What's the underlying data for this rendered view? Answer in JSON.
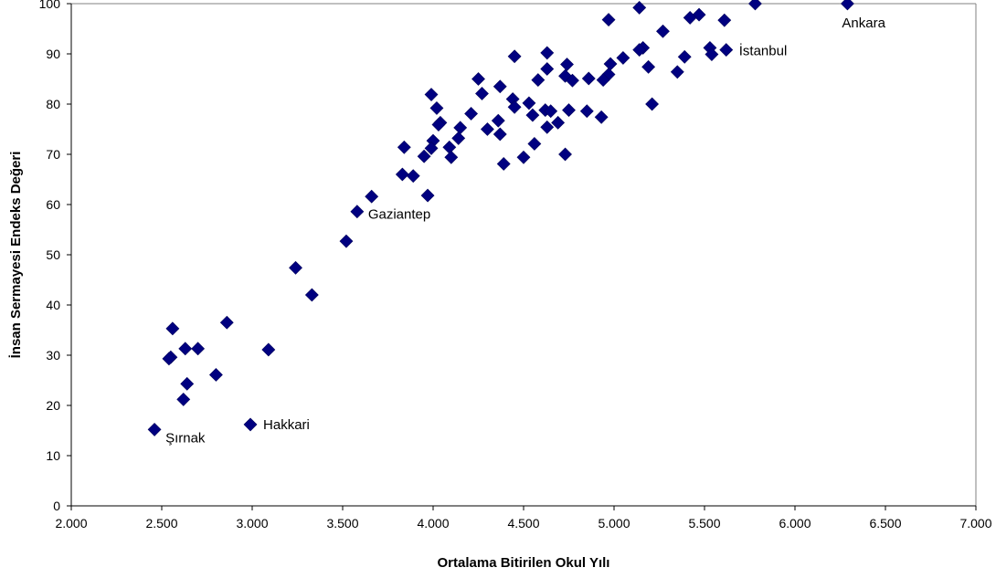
{
  "chart_data": {
    "type": "scatter",
    "xlabel": "Ortalama Bitirilen Okul Yılı",
    "ylabel": "İnsan Sermayesi Endeks Değeri",
    "xlim": [
      2.0,
      7.0
    ],
    "ylim": [
      0,
      100
    ],
    "x_ticks": [
      "2.000",
      "2.500",
      "3.000",
      "3.500",
      "4.000",
      "4.500",
      "5.000",
      "5.500",
      "6.000",
      "6.500",
      "7.000"
    ],
    "y_ticks": [
      "0",
      "10",
      "20",
      "30",
      "40",
      "50",
      "60",
      "70",
      "80",
      "90",
      "100"
    ],
    "grid": false,
    "marker_color": "#000080",
    "points": [
      {
        "x": 6.29,
        "y": 100
      },
      {
        "x": 5.78,
        "y": 100
      },
      {
        "x": 5.14,
        "y": 99.2
      },
      {
        "x": 5.47,
        "y": 97.8
      },
      {
        "x": 5.42,
        "y": 97.2
      },
      {
        "x": 4.97,
        "y": 96.8
      },
      {
        "x": 5.61,
        "y": 96.7
      },
      {
        "x": 5.27,
        "y": 94.5
      },
      {
        "x": 5.16,
        "y": 91.2
      },
      {
        "x": 5.14,
        "y": 90.8
      },
      {
        "x": 5.53,
        "y": 91.2
      },
      {
        "x": 5.62,
        "y": 90.8
      },
      {
        "x": 5.54,
        "y": 89.9
      },
      {
        "x": 5.39,
        "y": 89.4
      },
      {
        "x": 4.63,
        "y": 90.2
      },
      {
        "x": 4.45,
        "y": 89.5
      },
      {
        "x": 5.05,
        "y": 89.2
      },
      {
        "x": 4.98,
        "y": 88.0
      },
      {
        "x": 5.19,
        "y": 87.4
      },
      {
        "x": 4.74,
        "y": 87.9
      },
      {
        "x": 4.63,
        "y": 87.0
      },
      {
        "x": 5.35,
        "y": 86.4
      },
      {
        "x": 4.97,
        "y": 85.9
      },
      {
        "x": 4.73,
        "y": 85.6
      },
      {
        "x": 4.94,
        "y": 84.8
      },
      {
        "x": 4.86,
        "y": 85.1
      },
      {
        "x": 4.77,
        "y": 84.7
      },
      {
        "x": 4.58,
        "y": 84.8
      },
      {
        "x": 4.25,
        "y": 85.0
      },
      {
        "x": 4.37,
        "y": 83.5
      },
      {
        "x": 4.27,
        "y": 82.1
      },
      {
        "x": 3.99,
        "y": 81.9
      },
      {
        "x": 4.44,
        "y": 81.0
      },
      {
        "x": 5.21,
        "y": 80.0
      },
      {
        "x": 4.53,
        "y": 80.2
      },
      {
        "x": 4.45,
        "y": 79.4
      },
      {
        "x": 4.02,
        "y": 79.2
      },
      {
        "x": 4.62,
        "y": 78.8
      },
      {
        "x": 4.65,
        "y": 78.6
      },
      {
        "x": 4.75,
        "y": 78.8
      },
      {
        "x": 4.85,
        "y": 78.6
      },
      {
        "x": 4.21,
        "y": 78.1
      },
      {
        "x": 4.55,
        "y": 77.8
      },
      {
        "x": 4.93,
        "y": 77.4
      },
      {
        "x": 4.36,
        "y": 76.7
      },
      {
        "x": 4.04,
        "y": 76.3
      },
      {
        "x": 4.03,
        "y": 75.9
      },
      {
        "x": 4.69,
        "y": 76.3
      },
      {
        "x": 4.63,
        "y": 75.4
      },
      {
        "x": 4.3,
        "y": 75.0
      },
      {
        "x": 4.15,
        "y": 75.3
      },
      {
        "x": 4.37,
        "y": 74.0
      },
      {
        "x": 4.14,
        "y": 73.2
      },
      {
        "x": 4.0,
        "y": 72.7
      },
      {
        "x": 4.56,
        "y": 72.1
      },
      {
        "x": 3.84,
        "y": 71.4
      },
      {
        "x": 4.09,
        "y": 71.4
      },
      {
        "x": 3.99,
        "y": 71.2
      },
      {
        "x": 4.73,
        "y": 70.0
      },
      {
        "x": 3.95,
        "y": 69.6
      },
      {
        "x": 4.1,
        "y": 69.4
      },
      {
        "x": 4.5,
        "y": 69.4
      },
      {
        "x": 4.39,
        "y": 68.1
      },
      {
        "x": 3.83,
        "y": 66.0
      },
      {
        "x": 3.89,
        "y": 65.7
      },
      {
        "x": 3.97,
        "y": 61.8
      },
      {
        "x": 3.66,
        "y": 61.6
      },
      {
        "x": 3.58,
        "y": 58.6
      },
      {
        "x": 3.52,
        "y": 52.7
      },
      {
        "x": 3.24,
        "y": 47.4
      },
      {
        "x": 3.33,
        "y": 42.0
      },
      {
        "x": 2.86,
        "y": 36.5
      },
      {
        "x": 2.56,
        "y": 35.3
      },
      {
        "x": 2.63,
        "y": 31.3
      },
      {
        "x": 2.7,
        "y": 31.3
      },
      {
        "x": 3.09,
        "y": 31.1
      },
      {
        "x": 2.55,
        "y": 29.6
      },
      {
        "x": 2.54,
        "y": 29.3
      },
      {
        "x": 2.8,
        "y": 26.1
      },
      {
        "x": 2.64,
        "y": 24.3
      },
      {
        "x": 2.62,
        "y": 21.2
      },
      {
        "x": 2.99,
        "y": 16.2
      },
      {
        "x": 2.46,
        "y": 15.2
      }
    ],
    "annotations": [
      {
        "text": "Ankara",
        "x": 6.29,
        "y": 100
      },
      {
        "text": "İstanbul",
        "x": 5.62,
        "y": 90.8
      },
      {
        "text": "Gaziantep",
        "x": 3.58,
        "y": 58.6
      },
      {
        "text": "Hakkari",
        "x": 2.99,
        "y": 16.2
      },
      {
        "text": "Şırnak",
        "x": 2.46,
        "y": 15.2
      }
    ]
  }
}
